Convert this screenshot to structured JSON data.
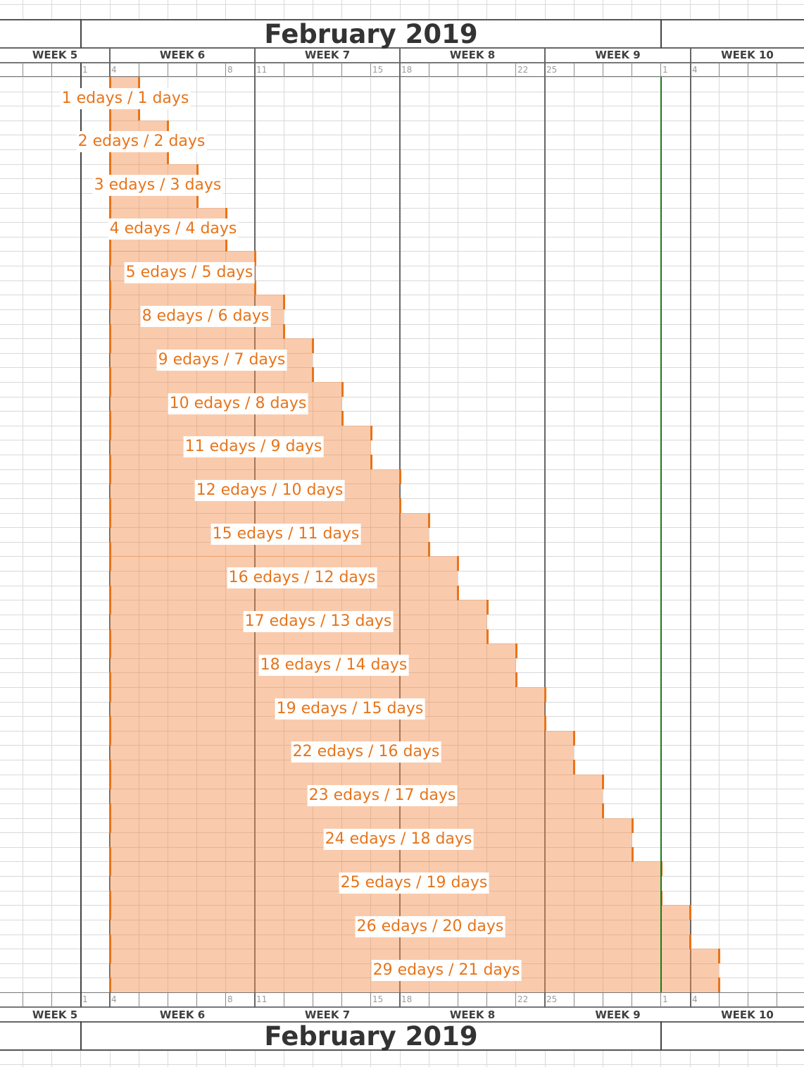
{
  "header": {
    "month_title": "February 2019",
    "weeks": [
      {
        "label": "WEEK 5"
      },
      {
        "label": "WEEK 6"
      },
      {
        "label": "WEEK 7"
      },
      {
        "label": "WEEK 8"
      },
      {
        "label": "WEEK 9"
      },
      {
        "label": "WEEK 10"
      }
    ],
    "day_markers": [
      "1",
      "4",
      "8",
      "11",
      "15",
      "18",
      "22",
      "25",
      "1",
      "4"
    ]
  },
  "footer": {
    "month_title": "February 2019"
  },
  "colors": {
    "bar_fill": "#f8cba8",
    "bar_edge": "#e8741a",
    "label_text": "#e8741a",
    "today_line": "#1a7a1a",
    "week_divider": "#555555",
    "grid": "#d9d9d9"
  },
  "bars": [
    {
      "label": "1 edays / 1 days"
    },
    {
      "label": "2 edays / 2 days"
    },
    {
      "label": "3 edays / 3 days"
    },
    {
      "label": "4 edays / 4 days"
    },
    {
      "label": "5 edays / 5 days"
    },
    {
      "label": "8 edays / 6 days"
    },
    {
      "label": "9 edays / 7 days"
    },
    {
      "label": "10 edays / 8 days"
    },
    {
      "label": "11 edays / 9 days"
    },
    {
      "label": "12 edays / 10 days"
    },
    {
      "label": "15 edays / 11 days"
    },
    {
      "label": "16 edays / 12 days"
    },
    {
      "label": "17 edays / 13 days"
    },
    {
      "label": "18 edays / 14 days"
    },
    {
      "label": "19 edays / 15 days"
    },
    {
      "label": "22 edays / 16 days"
    },
    {
      "label": "23 edays / 17 days"
    },
    {
      "label": "24 edays / 18 days"
    },
    {
      "label": "25 edays / 19 days"
    },
    {
      "label": "26 edays / 20 days"
    },
    {
      "label": "29 edays / 21 days"
    }
  ],
  "chart_data": {
    "type": "bar",
    "title": "February 2019",
    "orientation": "horizontal (gantt)",
    "start_date": "Feb 4, 2019",
    "categories": [
      "1 edays / 1 days",
      "2 edays / 2 days",
      "3 edays / 3 days",
      "4 edays / 4 days",
      "5 edays / 5 days",
      "8 edays / 6 days",
      "9 edays / 7 days",
      "10 edays / 8 days",
      "11 edays / 9 days",
      "12 edays / 10 days",
      "15 edays / 11 days",
      "16 edays / 12 days",
      "17 edays / 13 days",
      "18 edays / 14 days",
      "19 edays / 15 days",
      "22 edays / 16 days",
      "23 edays / 17 days",
      "24 edays / 18 days",
      "25 edays / 19 days",
      "26 edays / 20 days",
      "29 edays / 21 days"
    ],
    "series": [
      {
        "name": "elapsed days",
        "values": [
          1,
          2,
          3,
          4,
          5,
          8,
          9,
          10,
          11,
          12,
          15,
          16,
          17,
          18,
          19,
          22,
          23,
          24,
          25,
          26,
          29
        ]
      },
      {
        "name": "working days",
        "values": [
          1,
          2,
          3,
          4,
          5,
          6,
          7,
          8,
          9,
          10,
          11,
          12,
          13,
          14,
          15,
          16,
          17,
          18,
          19,
          20,
          21
        ]
      }
    ],
    "x_tick_labels": [
      "1",
      "4",
      "8",
      "11",
      "15",
      "18",
      "22",
      "25",
      "1",
      "4"
    ],
    "x_group_labels": [
      "WEEK 5",
      "WEEK 6",
      "WEEK 7",
      "WEEK 8",
      "WEEK 9",
      "WEEK 10"
    ],
    "today_marker": "Mar 1",
    "xlabel": "",
    "ylabel": "",
    "grid": true,
    "legend": "none"
  }
}
